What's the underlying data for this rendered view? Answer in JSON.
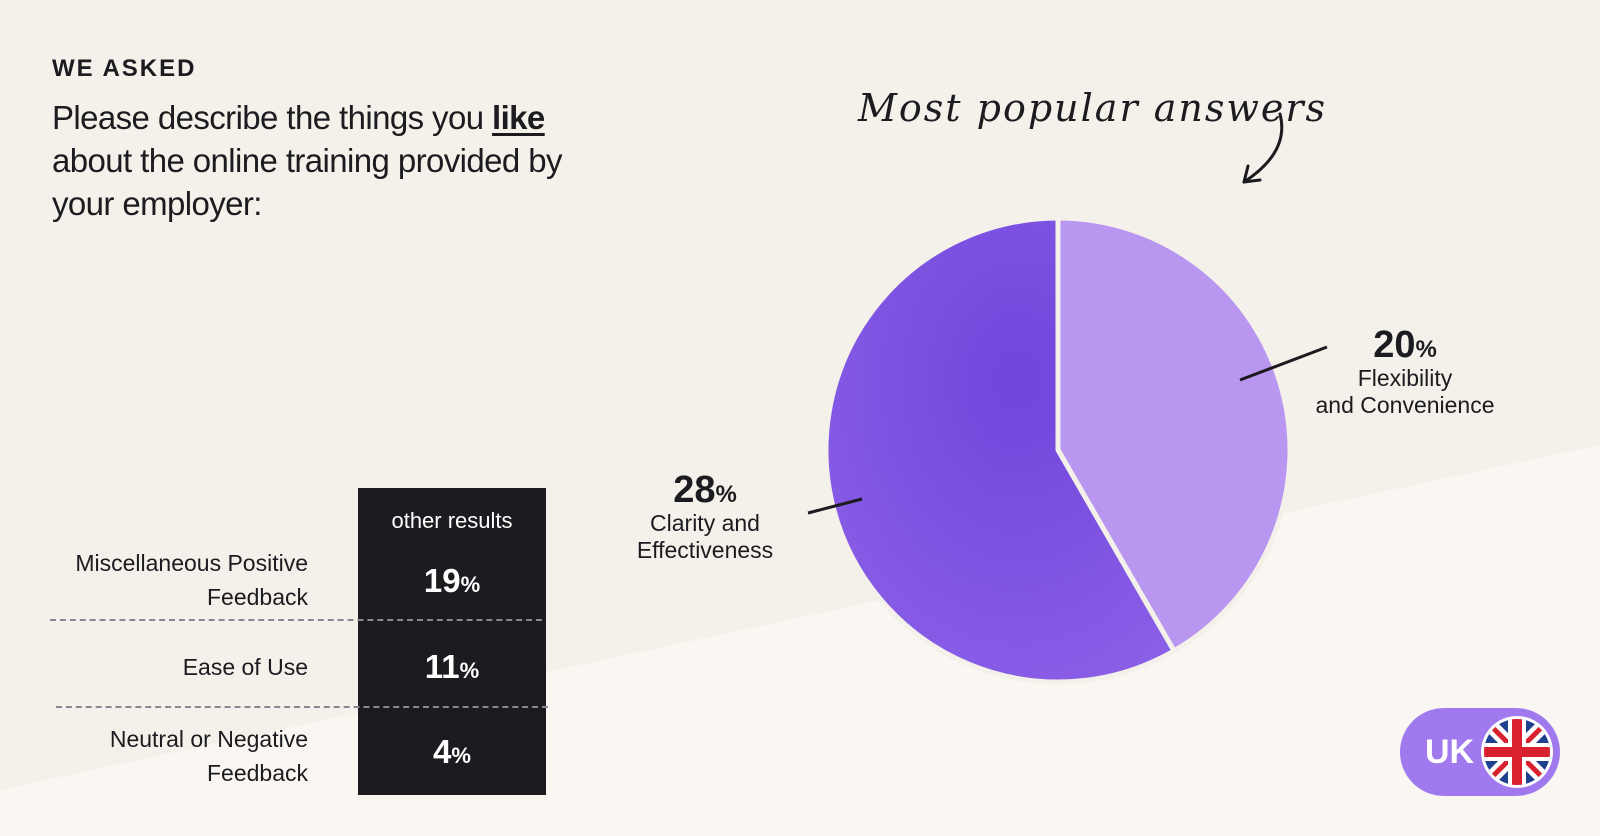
{
  "header": {
    "eyebrow": "WE ASKED",
    "question_before": "Please describe the things you ",
    "question_emphasis": "like",
    "question_after": " about the online training provided by your employer:"
  },
  "annotation": {
    "text": "Most popular answers"
  },
  "chart_data": [
    {
      "type": "pie",
      "title": "Most popular answers",
      "slices": [
        {
          "label": "Flexibility and Convenience",
          "value": 20,
          "display": "20",
          "unit": "%",
          "color": "#b997f1"
        },
        {
          "label": "Clarity and Effectiveness",
          "value": 28,
          "display": "28",
          "unit": "%",
          "color": "#7a4fe0"
        }
      ]
    },
    {
      "type": "table",
      "title": "other results",
      "rows": [
        {
          "label": "Miscellaneous Positive Feedback",
          "value": 19,
          "display": "19",
          "unit": "%"
        },
        {
          "label": "Ease of Use",
          "value": 11,
          "display": "11",
          "unit": "%"
        },
        {
          "label": "Neutral or Negative Feedback",
          "value": 4,
          "display": "4",
          "unit": "%"
        }
      ]
    }
  ],
  "labels": {
    "flex_line1": "Flexibility",
    "flex_line2": "and Convenience",
    "clar_line1": "Clarity and",
    "clar_line2": "Effectiveness",
    "misc_line1": "Miscellaneous Positive",
    "misc_line2": "Feedback",
    "neg_line1": "Neutral or Negative",
    "neg_line2": "Feedback"
  },
  "badge": {
    "country": "UK",
    "flag_icon": "uk-flag-icon",
    "color": "#a179ee"
  },
  "colors": {
    "background": "#f4f0ea",
    "background_lower": "#faf7f2",
    "table_bg": "#1c1b20",
    "text": "#1c1b1f"
  }
}
